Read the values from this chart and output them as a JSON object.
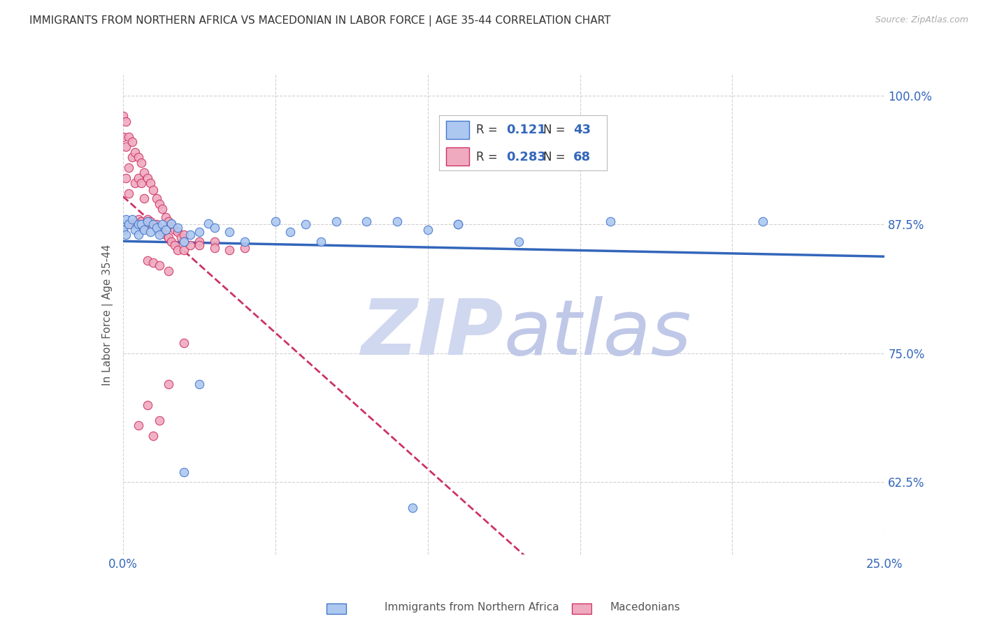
{
  "title": "IMMIGRANTS FROM NORTHERN AFRICA VS MACEDONIAN IN LABOR FORCE | AGE 35-44 CORRELATION CHART",
  "source_text": "Source: ZipAtlas.com",
  "ylabel": "In Labor Force | Age 35-44",
  "xlim": [
    0.0,
    0.25
  ],
  "ylim": [
    0.555,
    1.02
  ],
  "x_ticks": [
    0.0,
    0.05,
    0.1,
    0.15,
    0.2,
    0.25
  ],
  "y_ticks": [
    0.625,
    0.75,
    0.875,
    1.0
  ],
  "y_tick_labels": [
    "62.5%",
    "75.0%",
    "87.5%",
    "100.0%"
  ],
  "blue_R": "0.121",
  "blue_N": "43",
  "pink_R": "0.283",
  "pink_N": "68",
  "blue_color": "#adc8f0",
  "pink_color": "#f0aabf",
  "blue_edge_color": "#4477cc",
  "pink_edge_color": "#cc3366",
  "blue_line_color": "#3366bb",
  "pink_line_color": "#cc3366",
  "watermark_zip_color": "#d0d8f0",
  "watermark_atlas_color": "#c0c8e8",
  "blue_scatter_x": [
    0.0,
    0.0,
    0.001,
    0.001,
    0.002,
    0.003,
    0.004,
    0.005,
    0.005,
    0.006,
    0.007,
    0.008,
    0.009,
    0.01,
    0.011,
    0.012,
    0.013,
    0.014,
    0.016,
    0.018,
    0.02,
    0.022,
    0.025,
    0.028,
    0.03,
    0.035,
    0.04,
    0.05,
    0.055,
    0.06,
    0.065,
    0.07,
    0.08,
    0.09,
    0.1,
    0.11,
    0.13,
    0.16,
    0.21,
    0.025,
    0.02,
    0.11,
    0.095
  ],
  "blue_scatter_y": [
    0.875,
    0.87,
    0.88,
    0.865,
    0.875,
    0.88,
    0.87,
    0.875,
    0.865,
    0.875,
    0.87,
    0.878,
    0.868,
    0.875,
    0.872,
    0.865,
    0.875,
    0.87,
    0.876,
    0.872,
    0.858,
    0.865,
    0.868,
    0.876,
    0.872,
    0.868,
    0.858,
    0.878,
    0.868,
    0.875,
    0.858,
    0.878,
    0.878,
    0.878,
    0.87,
    0.875,
    0.858,
    0.878,
    0.878,
    0.72,
    0.635,
    0.875,
    0.6
  ],
  "pink_scatter_x": [
    0.0,
    0.0,
    0.0,
    0.001,
    0.001,
    0.001,
    0.001,
    0.002,
    0.002,
    0.002,
    0.003,
    0.003,
    0.003,
    0.004,
    0.004,
    0.004,
    0.005,
    0.005,
    0.005,
    0.006,
    0.006,
    0.006,
    0.007,
    0.007,
    0.007,
    0.008,
    0.008,
    0.009,
    0.009,
    0.01,
    0.01,
    0.011,
    0.011,
    0.012,
    0.012,
    0.013,
    0.013,
    0.014,
    0.014,
    0.015,
    0.015,
    0.016,
    0.016,
    0.017,
    0.017,
    0.018,
    0.018,
    0.019,
    0.02,
    0.02,
    0.022,
    0.025,
    0.03,
    0.035,
    0.04,
    0.008,
    0.01,
    0.012,
    0.015,
    0.02,
    0.025,
    0.03,
    0.015,
    0.02,
    0.005,
    0.008,
    0.01,
    0.012
  ],
  "pink_scatter_y": [
    0.98,
    0.96,
    0.87,
    0.975,
    0.95,
    0.92,
    0.875,
    0.96,
    0.93,
    0.905,
    0.955,
    0.94,
    0.875,
    0.945,
    0.915,
    0.875,
    0.94,
    0.92,
    0.88,
    0.935,
    0.915,
    0.878,
    0.925,
    0.9,
    0.872,
    0.92,
    0.88,
    0.915,
    0.878,
    0.908,
    0.875,
    0.9,
    0.875,
    0.895,
    0.872,
    0.89,
    0.868,
    0.882,
    0.865,
    0.878,
    0.862,
    0.875,
    0.858,
    0.87,
    0.855,
    0.868,
    0.85,
    0.862,
    0.865,
    0.85,
    0.855,
    0.858,
    0.858,
    0.85,
    0.852,
    0.84,
    0.838,
    0.835,
    0.83,
    0.858,
    0.855,
    0.852,
    0.72,
    0.76,
    0.68,
    0.7,
    0.67,
    0.685
  ]
}
